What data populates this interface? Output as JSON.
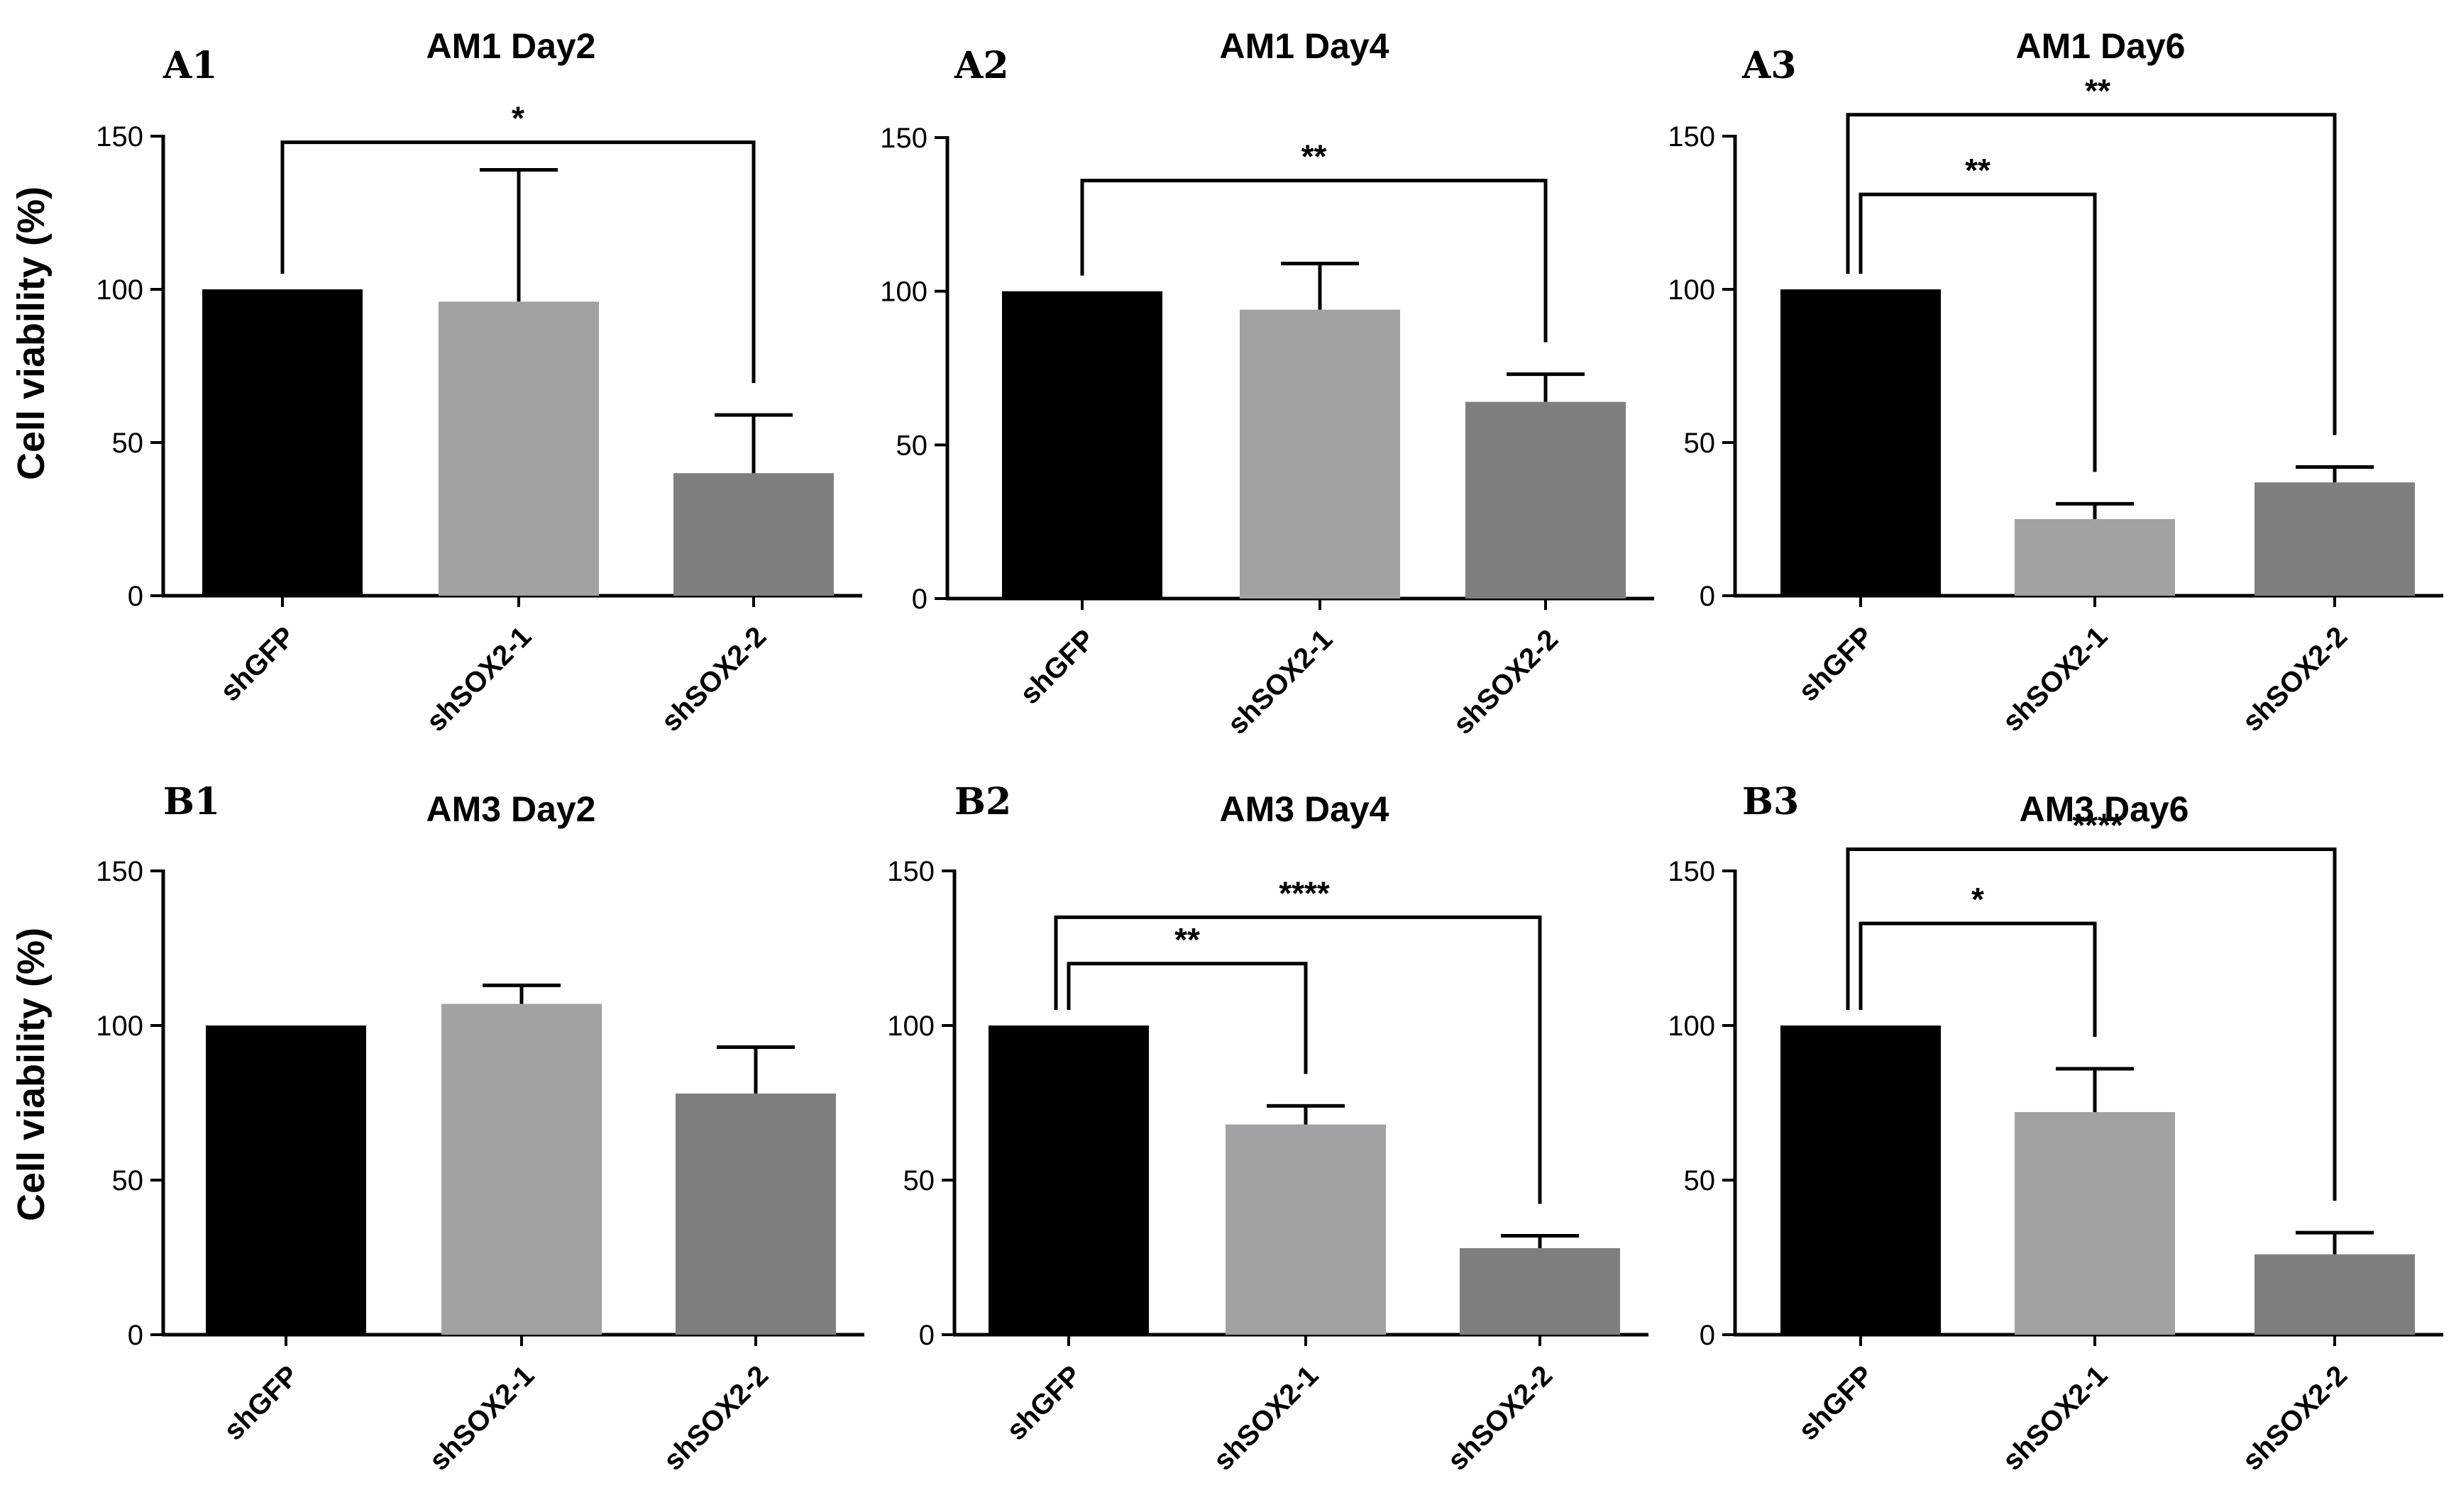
{
  "figure": {
    "ylabel": "Cell viability (%)",
    "categories": [
      "shGFP",
      "shSOX2-1",
      "shSOX2-2"
    ],
    "bar_colors": [
      "#000000",
      "#a2a2a6",
      "#7f7f7f"
    ]
  },
  "chart_data": [
    {
      "panel": "A1",
      "type": "bar",
      "title": "AM1 Day2",
      "categories": [
        "shGFP",
        "shSOX2-1",
        "shSOX2-2"
      ],
      "values": [
        100,
        96,
        40
      ],
      "error": [
        0,
        43,
        19
      ],
      "ylabel": "Cell viability (%)",
      "ylim": [
        0,
        150
      ],
      "yticks": [
        0,
        50,
        100,
        150
      ],
      "significance": [
        {
          "from": 0,
          "to": 2,
          "label": "*",
          "level": 148
        }
      ]
    },
    {
      "panel": "A2",
      "type": "bar",
      "title": "AM1 Day4",
      "categories": [
        "shGFP",
        "shSOX2-1",
        "shSOX2-2"
      ],
      "values": [
        100,
        94,
        64
      ],
      "error": [
        0,
        15,
        9
      ],
      "ylabel": "",
      "ylim": [
        0,
        150
      ],
      "yticks": [
        0,
        50,
        100,
        150
      ],
      "significance": [
        {
          "from": 0,
          "to": 2,
          "label": "**",
          "level": 136
        }
      ]
    },
    {
      "panel": "A3",
      "type": "bar",
      "title": "AM1 Day6",
      "categories": [
        "shGFP",
        "shSOX2-1",
        "shSOX2-2"
      ],
      "values": [
        100,
        25,
        37
      ],
      "error": [
        0,
        5,
        5
      ],
      "ylabel": "",
      "ylim": [
        0,
        150
      ],
      "yticks": [
        0,
        50,
        100,
        150
      ],
      "significance": [
        {
          "from": 0,
          "to": 1,
          "label": "**",
          "level": 131
        },
        {
          "from": 0,
          "to": 2,
          "label": "**",
          "level": 157
        }
      ]
    },
    {
      "panel": "B1",
      "type": "bar",
      "title": "AM3 Day2",
      "categories": [
        "shGFP",
        "shSOX2-1",
        "shSOX2-2"
      ],
      "values": [
        100,
        107,
        78
      ],
      "error": [
        0,
        6,
        15
      ],
      "ylabel": "Cell viability (%)",
      "ylim": [
        0,
        150
      ],
      "yticks": [
        0,
        50,
        100,
        150
      ],
      "significance": []
    },
    {
      "panel": "B2",
      "type": "bar",
      "title": "AM3 Day4",
      "categories": [
        "shGFP",
        "shSOX2-1",
        "shSOX2-2"
      ],
      "values": [
        100,
        68,
        28
      ],
      "error": [
        0,
        6,
        4
      ],
      "ylabel": "",
      "ylim": [
        0,
        150
      ],
      "yticks": [
        0,
        50,
        100,
        150
      ],
      "significance": [
        {
          "from": 0,
          "to": 1,
          "label": "**",
          "level": 120
        },
        {
          "from": 0,
          "to": 2,
          "label": "****",
          "level": 135
        }
      ]
    },
    {
      "panel": "B3",
      "type": "bar",
      "title": "AM3 Day6",
      "categories": [
        "shGFP",
        "shSOX2-1",
        "shSOX2-2"
      ],
      "values": [
        100,
        72,
        26
      ],
      "error": [
        0,
        14,
        7
      ],
      "ylabel": "",
      "ylim": [
        0,
        150
      ],
      "yticks": [
        0,
        50,
        100,
        150
      ],
      "significance": [
        {
          "from": 0,
          "to": 1,
          "label": "*",
          "level": 133
        },
        {
          "from": 0,
          "to": 2,
          "label": "****",
          "level": 157
        }
      ]
    }
  ]
}
